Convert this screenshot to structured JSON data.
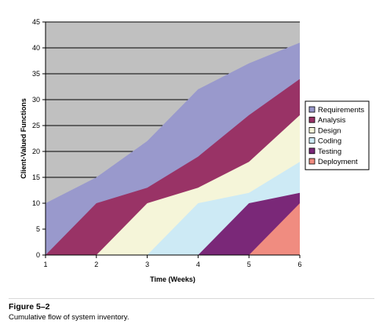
{
  "chart_data": {
    "type": "area",
    "stacked": false,
    "x": [
      1,
      2,
      3,
      4,
      5,
      6
    ],
    "xlabel": "Time (Weeks)",
    "ylabel": "Client-Valued Functions",
    "ylim": [
      0,
      45
    ],
    "yticks": [
      0,
      5,
      10,
      15,
      20,
      25,
      30,
      35,
      40,
      45
    ],
    "xticks": [
      1,
      2,
      3,
      4,
      5,
      6
    ],
    "grid": "horizontal",
    "legend_position": "right",
    "plot_background": "#c0c0c0",
    "series": [
      {
        "name": "Requirements",
        "color": "#9999cc",
        "values": [
          10,
          15,
          22,
          32,
          37,
          41
        ]
      },
      {
        "name": "Analysis",
        "color": "#993366",
        "values": [
          0,
          10,
          13,
          19,
          27,
          34
        ]
      },
      {
        "name": "Design",
        "color": "#f5f5d9",
        "values": [
          0,
          0,
          10,
          13,
          18,
          27
        ]
      },
      {
        "name": "Coding",
        "color": "#cdeaf5",
        "values": [
          0,
          0,
          0,
          10,
          12,
          18
        ]
      },
      {
        "name": "Testing",
        "color": "#7a2878",
        "values": [
          0,
          0,
          0,
          0,
          10,
          12
        ]
      },
      {
        "name": "Deployment",
        "color": "#f08c80",
        "values": [
          0,
          0,
          0,
          0,
          0,
          10
        ]
      }
    ]
  },
  "caption": {
    "title": "Figure 5–2",
    "text": "Cumulative flow of system inventory."
  }
}
